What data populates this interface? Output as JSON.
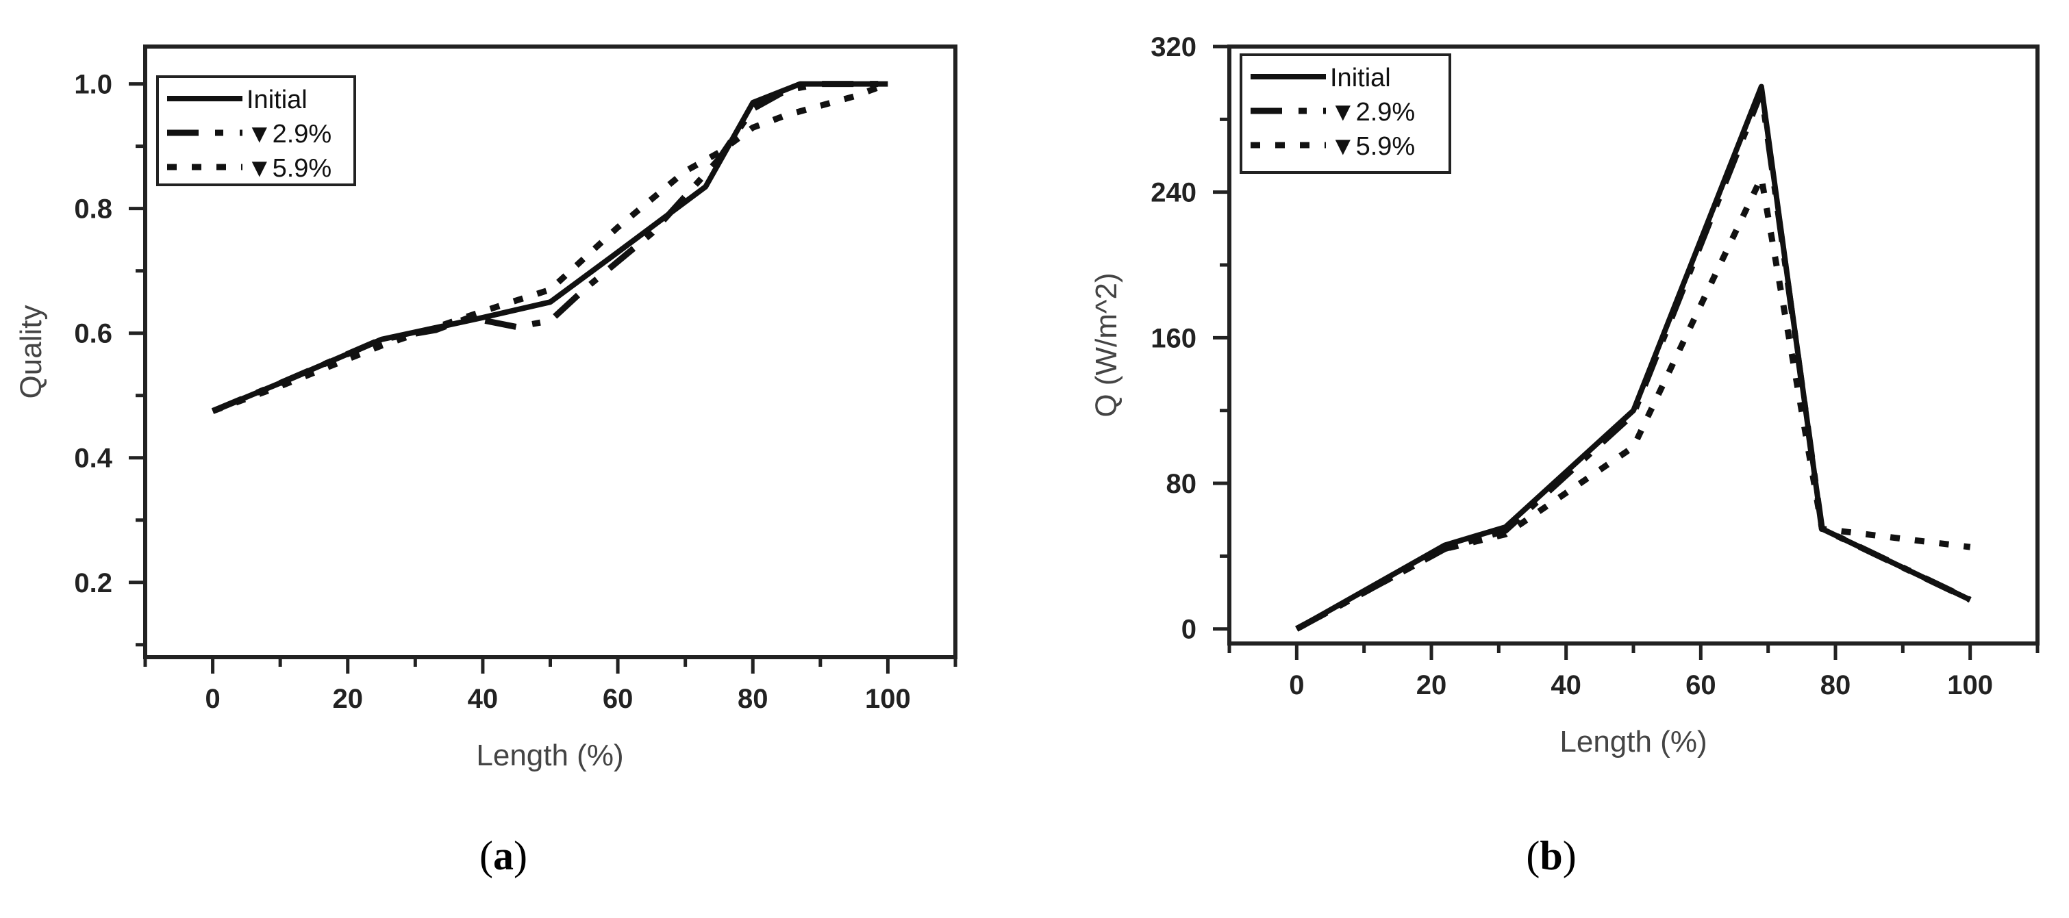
{
  "chart_data": [
    {
      "type": "line",
      "panel_label": "a",
      "title": "",
      "xlabel": "Length (%)",
      "ylabel": "Quality",
      "xlim": [
        -10,
        110
      ],
      "ylim": [
        0.08,
        1.06
      ],
      "xticks": [
        0,
        20,
        40,
        60,
        80,
        100
      ],
      "yticks": [
        0.2,
        0.4,
        0.6,
        0.8,
        1.0
      ],
      "xtick_labels": [
        "0",
        "20",
        "40",
        "60",
        "80",
        "100"
      ],
      "ytick_labels": [
        "0.2",
        "0.4",
        "0.6",
        "0.8",
        "1.0"
      ],
      "grid": false,
      "legend_position": "top-left",
      "series": [
        {
          "name": "Initial",
          "style": "solid",
          "x": [
            0,
            10,
            25,
            40,
            50,
            60,
            73,
            80,
            87,
            100
          ],
          "y": [
            0.475,
            0.52,
            0.59,
            0.625,
            0.65,
            0.73,
            0.835,
            0.97,
            1.0,
            1.0
          ]
        },
        {
          "name": "▼2.9%",
          "style": "dashed",
          "x": [
            0,
            10,
            25,
            33,
            38,
            45,
            50,
            55,
            65,
            75,
            80,
            85,
            90,
            100
          ],
          "y": [
            0.475,
            0.52,
            0.59,
            0.605,
            0.625,
            0.61,
            0.62,
            0.67,
            0.76,
            0.88,
            0.96,
            0.99,
            1.0,
            1.0
          ]
        },
        {
          "name": "▼5.9%",
          "style": "dotted",
          "x": [
            0,
            10,
            25,
            40,
            50,
            60,
            70,
            75,
            80,
            85,
            95,
            100
          ],
          "y": [
            0.475,
            0.515,
            0.58,
            0.635,
            0.67,
            0.77,
            0.86,
            0.89,
            0.93,
            0.95,
            0.98,
            1.0
          ]
        }
      ]
    },
    {
      "type": "line",
      "panel_label": "b",
      "title": "",
      "xlabel": "Length (%)",
      "ylabel": "Q (W/m^2)",
      "xlim": [
        -10,
        110
      ],
      "ylim": [
        -8,
        320
      ],
      "xticks": [
        0,
        20,
        40,
        60,
        80,
        100
      ],
      "yticks": [
        0,
        80,
        160,
        240,
        320
      ],
      "xtick_labels": [
        "0",
        "20",
        "40",
        "60",
        "80",
        "100"
      ],
      "ytick_labels": [
        "0",
        "80",
        "160",
        "240",
        "320"
      ],
      "grid": false,
      "legend_position": "top-left",
      "series": [
        {
          "name": "Initial",
          "style": "solid",
          "x": [
            0,
            22,
            31,
            50,
            69,
            78,
            100
          ],
          "y": [
            0,
            46,
            56,
            120,
            298,
            55,
            16
          ]
        },
        {
          "name": "▼2.9%",
          "style": "dashed",
          "x": [
            0,
            22,
            31,
            50,
            69,
            78,
            100
          ],
          "y": [
            0,
            44,
            54,
            118,
            295,
            55,
            16
          ]
        },
        {
          "name": "▼5.9%",
          "style": "dotted",
          "x": [
            0,
            22,
            31,
            50,
            69,
            78,
            100
          ],
          "y": [
            0,
            44,
            52,
            100,
            248,
            55,
            45
          ]
        }
      ]
    }
  ]
}
